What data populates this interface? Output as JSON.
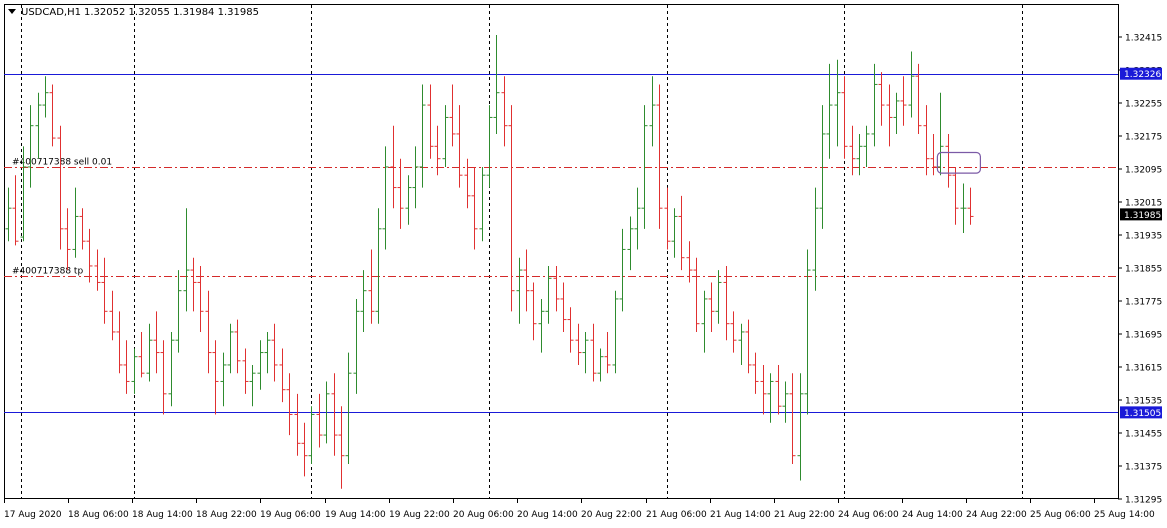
{
  "header": {
    "symbol_label": "USDCAD,H1",
    "ohlc_text": "1.32052 1.32055 1.31984 1.31985",
    "menu_icon": "triangle-down-icon"
  },
  "chart_data": {
    "type": "ohlc-bar",
    "symbol": "USDCAD",
    "timeframe": "H1",
    "ylim": [
      1.312,
      1.3245
    ],
    "grid": false,
    "y_ticks": [
      "1.32415",
      "1.32335",
      "1.32255",
      "1.32175",
      "1.32095",
      "1.32015",
      "1.31935",
      "1.31855",
      "1.31775",
      "1.31695",
      "1.31615",
      "1.31535",
      "1.31455",
      "1.31375",
      "1.31295"
    ],
    "x_ticks": [
      "17 Aug 2020",
      "18 Aug 06:00",
      "18 Aug 14:00",
      "18 Aug 22:00",
      "19 Aug 06:00",
      "19 Aug 14:00",
      "19 Aug 22:00",
      "20 Aug 06:00",
      "20 Aug 14:00",
      "20 Aug 22:00",
      "21 Aug 06:00",
      "21 Aug 14:00",
      "21 Aug 22:00",
      "24 Aug 06:00",
      "24 Aug 14:00",
      "24 Aug 22:00",
      "25 Aug 06:00",
      "25 Aug 14:00"
    ],
    "day_separators": [
      "18 Aug",
      "19 Aug",
      "20 Aug",
      "21 Aug",
      "24 Aug",
      "25 Aug"
    ],
    "hlines": [
      {
        "price": 1.32326,
        "label": "1.32326",
        "color": "#1a1ad8"
      },
      {
        "price": 1.31505,
        "label": "1.31505",
        "color": "#1a1ad8"
      }
    ],
    "orders": [
      {
        "price": 1.321,
        "label": "#400717388 sell 0.01",
        "color": "#d42a2a"
      },
      {
        "price": 1.31835,
        "label": "#400717388 tp",
        "color": "#d42a2a"
      }
    ],
    "current_price": "1.31985",
    "colors": {
      "up": "#2e8b2e",
      "down": "#e03030",
      "line": "#1a1ad8",
      "highlight_box": "#7b5aa6"
    },
    "highlight_box": {
      "from_bar": 126,
      "to_bar": 131,
      "price_top": 1.32135,
      "price_bottom": 1.32085
    },
    "bars": [
      [
        1.3195,
        1.3205,
        1.3192,
        1.32
      ],
      [
        1.32,
        1.3208,
        1.3191,
        1.3192
      ],
      [
        1.3193,
        1.3215,
        1.3192,
        1.321
      ],
      [
        1.321,
        1.3225,
        1.3205,
        1.322
      ],
      [
        1.322,
        1.3228,
        1.3212,
        1.3225
      ],
      [
        1.3225,
        1.3232,
        1.3222,
        1.3228
      ],
      [
        1.3228,
        1.323,
        1.3215,
        1.3217
      ],
      [
        1.3217,
        1.322,
        1.319,
        1.3195
      ],
      [
        1.3195,
        1.32,
        1.3185,
        1.319
      ],
      [
        1.319,
        1.3205,
        1.3188,
        1.3198
      ],
      [
        1.3198,
        1.32,
        1.319,
        1.3192
      ],
      [
        1.3192,
        1.3195,
        1.3182,
        1.3186
      ],
      [
        1.3186,
        1.319,
        1.318,
        1.3182
      ],
      [
        1.3182,
        1.3188,
        1.3172,
        1.3175
      ],
      [
        1.3175,
        1.318,
        1.3168,
        1.317
      ],
      [
        1.317,
        1.3175,
        1.316,
        1.3162
      ],
      [
        1.3162,
        1.3168,
        1.3155,
        1.3158
      ],
      [
        1.3158,
        1.3166,
        1.3155,
        1.3164
      ],
      [
        1.3164,
        1.317,
        1.3159,
        1.316
      ],
      [
        1.316,
        1.3172,
        1.3158,
        1.3168
      ],
      [
        1.3168,
        1.3175,
        1.316,
        1.3165
      ],
      [
        1.3165,
        1.3168,
        1.315,
        1.3155
      ],
      [
        1.3155,
        1.317,
        1.3152,
        1.3168
      ],
      [
        1.3168,
        1.3185,
        1.3165,
        1.318
      ],
      [
        1.318,
        1.32,
        1.3175,
        1.3185
      ],
      [
        1.3185,
        1.3188,
        1.3175,
        1.3182
      ],
      [
        1.3182,
        1.3186,
        1.317,
        1.3175
      ],
      [
        1.3175,
        1.318,
        1.316,
        1.3165
      ],
      [
        1.3165,
        1.3168,
        1.315,
        1.3158
      ],
      [
        1.3158,
        1.3165,
        1.3152,
        1.3162
      ],
      [
        1.3162,
        1.3172,
        1.316,
        1.317
      ],
      [
        1.317,
        1.3173,
        1.316,
        1.3163
      ],
      [
        1.3163,
        1.3166,
        1.3155,
        1.3158
      ],
      [
        1.3158,
        1.3162,
        1.3152,
        1.316
      ],
      [
        1.316,
        1.3168,
        1.3156,
        1.3165
      ],
      [
        1.3165,
        1.317,
        1.316,
        1.3168
      ],
      [
        1.3168,
        1.3172,
        1.3158,
        1.3162
      ],
      [
        1.3162,
        1.3166,
        1.3153,
        1.3156
      ],
      [
        1.3156,
        1.316,
        1.3145,
        1.315
      ],
      [
        1.315,
        1.3155,
        1.314,
        1.3143
      ],
      [
        1.3143,
        1.3148,
        1.3135,
        1.314
      ],
      [
        1.314,
        1.3152,
        1.3138,
        1.315
      ],
      [
        1.315,
        1.3155,
        1.3142,
        1.3145
      ],
      [
        1.3145,
        1.3158,
        1.3143,
        1.3155
      ],
      [
        1.3155,
        1.316,
        1.314,
        1.3145
      ],
      [
        1.3145,
        1.3152,
        1.3132,
        1.314
      ],
      [
        1.314,
        1.3165,
        1.3138,
        1.316
      ],
      [
        1.316,
        1.3178,
        1.3155,
        1.3175
      ],
      [
        1.3175,
        1.3185,
        1.317,
        1.318
      ],
      [
        1.318,
        1.319,
        1.3172,
        1.3175
      ],
      [
        1.3175,
        1.32,
        1.3172,
        1.3195
      ],
      [
        1.3195,
        1.3215,
        1.319,
        1.321
      ],
      [
        1.321,
        1.322,
        1.32,
        1.3205
      ],
      [
        1.3205,
        1.3212,
        1.3195,
        1.32
      ],
      [
        1.32,
        1.3208,
        1.3196,
        1.3205
      ],
      [
        1.3205,
        1.3215,
        1.32,
        1.321
      ],
      [
        1.321,
        1.323,
        1.3205,
        1.3225
      ],
      [
        1.3225,
        1.323,
        1.3212,
        1.3215
      ],
      [
        1.3215,
        1.322,
        1.3208,
        1.3212
      ],
      [
        1.3212,
        1.3225,
        1.321,
        1.3222
      ],
      [
        1.3222,
        1.323,
        1.3215,
        1.3218
      ],
      [
        1.3218,
        1.3225,
        1.3205,
        1.3208
      ],
      [
        1.3208,
        1.3212,
        1.32,
        1.3203
      ],
      [
        1.3203,
        1.321,
        1.319,
        1.3195
      ],
      [
        1.3195,
        1.321,
        1.3192,
        1.3208
      ],
      [
        1.3208,
        1.3225,
        1.3205,
        1.3222
      ],
      [
        1.3222,
        1.3242,
        1.3218,
        1.3228
      ],
      [
        1.3228,
        1.3232,
        1.3215,
        1.322
      ],
      [
        1.322,
        1.3225,
        1.3175,
        1.318
      ],
      [
        1.318,
        1.3188,
        1.3172,
        1.3185
      ],
      [
        1.3185,
        1.319,
        1.3175,
        1.318
      ],
      [
        1.318,
        1.3182,
        1.3168,
        1.3172
      ],
      [
        1.3172,
        1.3178,
        1.3165,
        1.3175
      ],
      [
        1.3175,
        1.3186,
        1.3172,
        1.3183
      ],
      [
        1.3183,
        1.3186,
        1.3175,
        1.3178
      ],
      [
        1.3178,
        1.3182,
        1.317,
        1.3173
      ],
      [
        1.3173,
        1.3176,
        1.3165,
        1.3168
      ],
      [
        1.3168,
        1.3172,
        1.3162,
        1.3165
      ],
      [
        1.3165,
        1.317,
        1.316,
        1.3168
      ],
      [
        1.3168,
        1.3172,
        1.3158,
        1.316
      ],
      [
        1.316,
        1.3166,
        1.3158,
        1.3164
      ],
      [
        1.3164,
        1.317,
        1.316,
        1.3162
      ],
      [
        1.3162,
        1.318,
        1.316,
        1.3178
      ],
      [
        1.3178,
        1.3195,
        1.3175,
        1.319
      ],
      [
        1.319,
        1.3198,
        1.3185,
        1.3195
      ],
      [
        1.3195,
        1.3205,
        1.319,
        1.32
      ],
      [
        1.32,
        1.3225,
        1.3195,
        1.322
      ],
      [
        1.322,
        1.3232,
        1.3215,
        1.3225
      ],
      [
        1.3225,
        1.323,
        1.3195,
        1.32
      ],
      [
        1.32,
        1.3205,
        1.319,
        1.3192
      ],
      [
        1.3192,
        1.32,
        1.3188,
        1.3198
      ],
      [
        1.3198,
        1.3203,
        1.3185,
        1.3188
      ],
      [
        1.3188,
        1.3192,
        1.3182,
        1.3185
      ],
      [
        1.3185,
        1.3188,
        1.317,
        1.3172
      ],
      [
        1.3172,
        1.318,
        1.3165,
        1.3178
      ],
      [
        1.3178,
        1.3182,
        1.317,
        1.3175
      ],
      [
        1.3175,
        1.3185,
        1.3172,
        1.3182
      ],
      [
        1.3182,
        1.3186,
        1.3168,
        1.3172
      ],
      [
        1.3172,
        1.3175,
        1.3165,
        1.3168
      ],
      [
        1.3168,
        1.3172,
        1.3162,
        1.317
      ],
      [
        1.317,
        1.3173,
        1.316,
        1.3162
      ],
      [
        1.3162,
        1.3165,
        1.3155,
        1.3158
      ],
      [
        1.3158,
        1.3162,
        1.315,
        1.3155
      ],
      [
        1.3155,
        1.316,
        1.3148,
        1.3158
      ],
      [
        1.3158,
        1.3162,
        1.315,
        1.3152
      ],
      [
        1.3152,
        1.3158,
        1.3148,
        1.3155
      ],
      [
        1.3155,
        1.316,
        1.3138,
        1.314
      ],
      [
        1.314,
        1.316,
        1.3134,
        1.3155
      ],
      [
        1.3155,
        1.319,
        1.315,
        1.3185
      ],
      [
        1.3185,
        1.3205,
        1.318,
        1.32
      ],
      [
        1.32,
        1.3225,
        1.3195,
        1.3218
      ],
      [
        1.3218,
        1.3235,
        1.3212,
        1.3225
      ],
      [
        1.3225,
        1.3236,
        1.3215,
        1.3228
      ],
      [
        1.3228,
        1.3232,
        1.3212,
        1.3215
      ],
      [
        1.3215,
        1.322,
        1.3208,
        1.3212
      ],
      [
        1.3212,
        1.3218,
        1.3208,
        1.3215
      ],
      [
        1.3215,
        1.322,
        1.321,
        1.3218
      ],
      [
        1.3218,
        1.3235,
        1.3215,
        1.323
      ],
      [
        1.323,
        1.3233,
        1.322,
        1.3225
      ],
      [
        1.3225,
        1.323,
        1.3215,
        1.3222
      ],
      [
        1.3222,
        1.3228,
        1.3218,
        1.3226
      ],
      [
        1.3226,
        1.3232,
        1.322,
        1.3225
      ],
      [
        1.3225,
        1.3238,
        1.3222,
        1.3232
      ],
      [
        1.3232,
        1.3235,
        1.3218,
        1.322
      ],
      [
        1.322,
        1.3225,
        1.3208,
        1.3212
      ],
      [
        1.3212,
        1.3218,
        1.3208,
        1.321
      ],
      [
        1.321,
        1.3228,
        1.3208,
        1.3215
      ],
      [
        1.3215,
        1.3218,
        1.3205,
        1.3208
      ],
      [
        1.3208,
        1.321,
        1.3196,
        1.32
      ],
      [
        1.32,
        1.3206,
        1.3194,
        1.32
      ],
      [
        1.32,
        1.3205,
        1.3196,
        1.3198
      ]
    ]
  }
}
